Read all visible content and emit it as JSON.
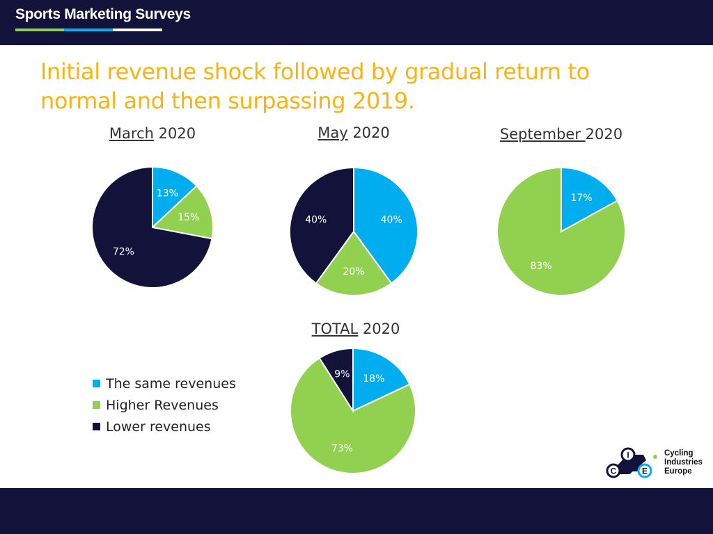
{
  "header": {
    "brand": "Sports Marketing Surveys"
  },
  "headline": "Initial revenue shock followed by gradual return to normal and then surpassing 2019.",
  "colors": {
    "same": "#00aeef",
    "higher": "#92d050",
    "lower": "#13123a",
    "accent": "#f9b313",
    "brand_stripe": [
      "#92d050",
      "#00aeef",
      "#ffffff"
    ]
  },
  "legend": [
    {
      "key": "same",
      "label": "The same revenues"
    },
    {
      "key": "higher",
      "label": "Higher Revenues"
    },
    {
      "key": "lower",
      "label": "Lower revenues"
    }
  ],
  "chart_data": [
    {
      "type": "pie",
      "title_underlined": "March",
      "title_rest": " 2020",
      "slices": [
        {
          "key": "same",
          "value": 13,
          "label": "13%"
        },
        {
          "key": "higher",
          "value": 15,
          "label": "15%"
        },
        {
          "key": "lower",
          "value": 72,
          "label": "72%"
        }
      ]
    },
    {
      "type": "pie",
      "title_underlined": "May",
      "title_rest": " 2020",
      "slices": [
        {
          "key": "same",
          "value": 40,
          "label": "40%"
        },
        {
          "key": "higher",
          "value": 20,
          "label": "20%"
        },
        {
          "key": "lower",
          "value": 40,
          "label": "40%"
        }
      ]
    },
    {
      "type": "pie",
      "title_underlined": "September ",
      "title_rest": "2020",
      "slices": [
        {
          "key": "same",
          "value": 17,
          "label": "17%"
        },
        {
          "key": "higher",
          "value": 83,
          "label": "83%"
        }
      ]
    },
    {
      "type": "pie",
      "title_underlined": "TOTAL",
      "title_rest": " 2020",
      "slices": [
        {
          "key": "same",
          "value": 18,
          "label": "18%"
        },
        {
          "key": "higher",
          "value": 73,
          "label": "73%"
        },
        {
          "key": "lower",
          "value": 9,
          "label": "9%"
        }
      ]
    }
  ],
  "footer_logo": {
    "letters": [
      "C",
      "I",
      "E"
    ],
    "lines": [
      "Cycling",
      "Industries",
      "Europe"
    ]
  }
}
